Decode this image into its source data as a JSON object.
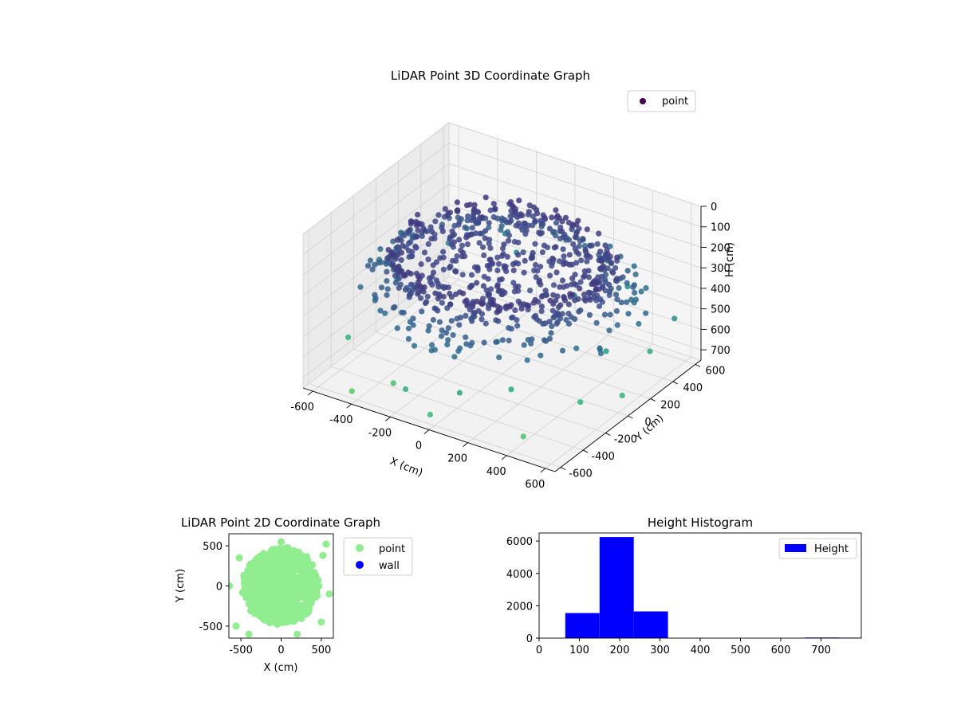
{
  "chart_data": [
    {
      "type": "scatter",
      "title": "LiDAR Point 3D Coordinate Graph",
      "xlabel": "X (cm)",
      "ylabel": "Y (cm)",
      "zlabel": "H (cm)",
      "xlim": [
        -650,
        650
      ],
      "ylim": [
        -650,
        650
      ],
      "zlim": [
        0,
        750
      ],
      "z_inverted": true,
      "x_ticks": [
        "-600",
        "-400",
        "-200",
        "0",
        "200",
        "400",
        "600"
      ],
      "y_ticks": [
        "-600",
        "-400",
        "-200",
        "0",
        "200",
        "400",
        "600"
      ],
      "z_ticks": [
        "0",
        "100",
        "200",
        "300",
        "400",
        "500",
        "600",
        "700"
      ],
      "legend": [
        "point"
      ],
      "legend_position": "top-right",
      "colormap": "viridis",
      "clusters": [
        {
          "shape": "ring",
          "radius": 480,
          "height": 170,
          "count": 90
        },
        {
          "shape": "ring",
          "radius": 470,
          "height": 200,
          "count": 90
        },
        {
          "shape": "ring",
          "radius": 490,
          "height": 230,
          "count": 90
        },
        {
          "shape": "ring",
          "radius": 480,
          "height": 260,
          "count": 90
        },
        {
          "shape": "disk",
          "radius": 430,
          "height": 210,
          "count": 260
        },
        {
          "shape": "ring",
          "radius": 560,
          "height": 300,
          "count": 90
        },
        {
          "shape": "ring",
          "radius": 620,
          "height": 350,
          "count": 55
        }
      ],
      "outliers": [
        {
          "x": 250,
          "y": -350,
          "z": 600
        },
        {
          "x": -400,
          "y": -100,
          "z": 400
        },
        {
          "x": 100,
          "y": -550,
          "z": 580
        },
        {
          "x": 450,
          "y": 150,
          "z": 560
        },
        {
          "x": -600,
          "y": 100,
          "z": 520
        },
        {
          "x": 600,
          "y": 500,
          "z": 500
        },
        {
          "x": -150,
          "y": -600,
          "z": 620
        },
        {
          "x": 300,
          "y": 600,
          "z": 480
        },
        {
          "x": -520,
          "y": 420,
          "z": 450
        },
        {
          "x": 520,
          "y": -200,
          "z": 640
        },
        {
          "x": 0,
          "y": -640,
          "z": 680
        },
        {
          "x": -300,
          "y": -450,
          "z": 700
        },
        {
          "x": 400,
          "y": -500,
          "z": 720
        },
        {
          "x": 620,
          "y": 0,
          "z": 660
        },
        {
          "x": -620,
          "y": -300,
          "z": 640
        },
        {
          "x": 200,
          "y": 300,
          "z": 430
        },
        {
          "x": -250,
          "y": 560,
          "z": 470
        },
        {
          "x": 560,
          "y": 350,
          "z": 610
        },
        {
          "x": -450,
          "y": -560,
          "z": 740
        },
        {
          "x": 150,
          "y": -300,
          "z": 420
        }
      ]
    },
    {
      "type": "scatter",
      "title": "LiDAR Point 2D Coordinate Graph",
      "xlabel": "X (cm)",
      "ylabel": "Y (cm)",
      "xlim": [
        -650,
        650
      ],
      "ylim": [
        -650,
        650
      ],
      "x_ticks": [
        -500,
        0,
        500
      ],
      "y_ticks": [
        -500,
        0,
        500
      ],
      "series": [
        {
          "name": "point",
          "color": "#90ee90",
          "disk_radius": 470,
          "outliers": [
            [
              0,
              550
            ],
            [
              -640,
              0
            ],
            [
              520,
              380
            ],
            [
              -560,
              -500
            ],
            [
              500,
              -450
            ],
            [
              -520,
              350
            ],
            [
              600,
              -100
            ],
            [
              200,
              -600
            ],
            [
              -400,
              -600
            ],
            [
              560,
              520
            ]
          ]
        },
        {
          "name": "wall",
          "color": "#0000ff",
          "points": []
        }
      ],
      "legend_position": "outside-right"
    },
    {
      "type": "bar",
      "title": "Height Histogram",
      "xlim": [
        0,
        800
      ],
      "ylim": [
        0,
        6500
      ],
      "x_ticks": [
        0,
        100,
        200,
        300,
        400,
        500,
        600,
        700
      ],
      "y_ticks": [
        0,
        2000,
        4000,
        6000
      ],
      "bins": [
        {
          "x0": 65,
          "x1": 150,
          "value": 1550
        },
        {
          "x0": 150,
          "x1": 235,
          "value": 6250
        },
        {
          "x0": 235,
          "x1": 320,
          "value": 1650
        },
        {
          "x0": 320,
          "x1": 405,
          "value": 5
        },
        {
          "x0": 405,
          "x1": 490,
          "value": 3
        },
        {
          "x0": 490,
          "x1": 575,
          "value": 2
        },
        {
          "x0": 575,
          "x1": 660,
          "value": 3
        },
        {
          "x0": 660,
          "x1": 745,
          "value": 40
        },
        {
          "x0": 745,
          "x1": 800,
          "value": 30
        }
      ],
      "legend": [
        "Height"
      ],
      "legend_position": "top-right",
      "color": "#0000ff"
    }
  ]
}
